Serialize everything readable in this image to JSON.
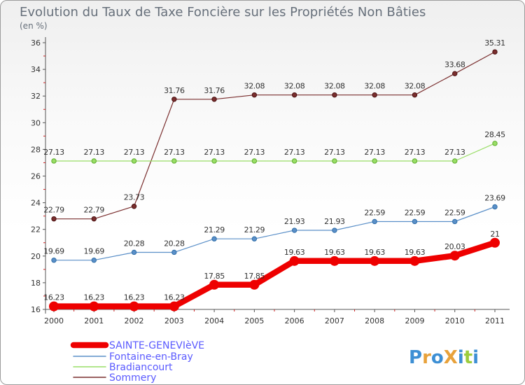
{
  "chart_data": {
    "type": "line",
    "title": "Evolution du Taux de Taxe Foncière sur les Propriétés Non Bâties",
    "unit_label": "(en %)",
    "xlabel": "",
    "ylabel": "",
    "ylim": [
      16,
      36
    ],
    "yticks": [
      "16",
      "18",
      "20",
      "22",
      "24",
      "26",
      "28",
      "30",
      "32",
      "34",
      "36"
    ],
    "categories": [
      "2000",
      "2001",
      "2002",
      "2003",
      "2004",
      "2005",
      "2006",
      "2007",
      "2008",
      "2009",
      "2010",
      "2011"
    ],
    "series": [
      {
        "name": "SAINTE-GENEVIèVE",
        "color": "#ee0000",
        "values": [
          16.23,
          16.23,
          16.23,
          16.23,
          17.85,
          17.85,
          19.63,
          19.63,
          19.63,
          19.63,
          20.03,
          21
        ],
        "labels": [
          "16.23",
          "16.23",
          "16.23",
          "16.23",
          "17.85",
          "17.85",
          "19.63",
          "19.63",
          "19.63",
          "19.63",
          "20.03",
          "21"
        ]
      },
      {
        "name": "Fontaine-en-Bray",
        "color": "#5a8fc8",
        "values": [
          19.69,
          19.69,
          20.28,
          20.28,
          21.29,
          21.29,
          21.93,
          21.93,
          22.59,
          22.59,
          22.59,
          23.69
        ],
        "labels": [
          "19.69",
          "19.69",
          "20.28",
          "20.28",
          "21.29",
          "21.29",
          "21.93",
          "21.93",
          "22.59",
          "22.59",
          "22.59",
          "23.69"
        ]
      },
      {
        "name": "Bradiancourt",
        "color": "#99dd66",
        "values": [
          27.13,
          27.13,
          27.13,
          27.13,
          27.13,
          27.13,
          27.13,
          27.13,
          27.13,
          27.13,
          27.13,
          28.45
        ],
        "labels": [
          "27.13",
          "27.13",
          "27.13",
          "27.13",
          "27.13",
          "27.13",
          "27.13",
          "27.13",
          "27.13",
          "27.13",
          "27.13",
          "28.45"
        ]
      },
      {
        "name": "Sommery",
        "color": "#7a2e2e",
        "values": [
          22.79,
          22.79,
          23.73,
          31.76,
          31.76,
          32.08,
          32.08,
          32.08,
          32.08,
          32.08,
          33.68,
          35.31
        ],
        "labels": [
          "22.79",
          "22.79",
          "23.73",
          "31.76",
          "31.76",
          "32.08",
          "32.08",
          "32.08",
          "32.08",
          "32.08",
          "33.68",
          "35.31"
        ]
      }
    ],
    "grid": false,
    "legend": "bottom-left"
  },
  "brand": {
    "logo_text": "ProXiti",
    "letter_colors": [
      "#3d8fd4",
      "#e8a23b",
      "#3d8fd4",
      "#e8a23b",
      "#3d8fd4",
      "#9ccc3c",
      "#3d8fd4"
    ]
  }
}
